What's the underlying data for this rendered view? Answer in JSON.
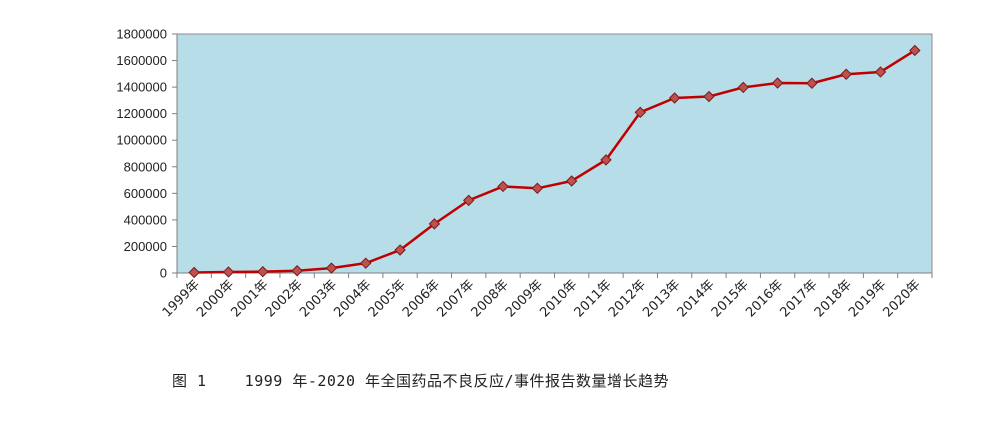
{
  "chart_data": {
    "type": "line",
    "categories": [
      "1999年",
      "2000年",
      "2001年",
      "2002年",
      "2003年",
      "2004年",
      "2005年",
      "2006年",
      "2007年",
      "2008年",
      "2009年",
      "2010年",
      "2011年",
      "2012年",
      "2013年",
      "2014年",
      "2015年",
      "2016年",
      "2017年",
      "2018年",
      "2019年",
      "2020年"
    ],
    "series": [
      {
        "values": [
          4000,
          8000,
          10000,
          17000,
          37000,
          74000,
          173000,
          370000,
          547000,
          652000,
          638000,
          693000,
          852000,
          1210000,
          1318000,
          1329000,
          1398000,
          1431000,
          1429000,
          1497000,
          1514000,
          1676000
        ],
        "color": "#c00000",
        "marker_color": "#c0504d"
      }
    ],
    "yticks": [
      "0",
      "200000",
      "400000",
      "600000",
      "800000",
      "1000000",
      "1200000",
      "1400000",
      "1600000",
      "1800000"
    ],
    "ylim": [
      0,
      1800000
    ],
    "grid": false,
    "plot_background": "#b7dde8"
  },
  "caption": "图 1    1999 年-2020 年全国药品不良反应/事件报告数量增长趋势"
}
